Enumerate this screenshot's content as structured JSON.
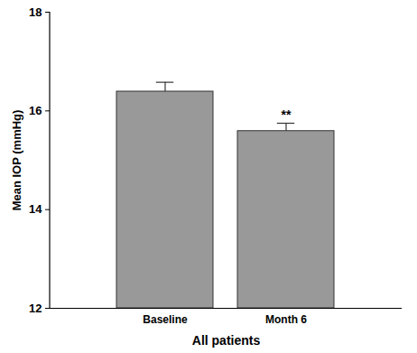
{
  "chart_data": {
    "type": "bar",
    "categories": [
      "Baseline",
      "Month 6"
    ],
    "values": [
      16.39,
      15.59
    ],
    "error": [
      0.19,
      0.16
    ],
    "color": "#999999",
    "xlabel": "All patients",
    "ylabel": "Mean IOP (mmHg)",
    "ylim": [
      12,
      18
    ],
    "yticks": [
      12,
      14,
      16,
      18
    ],
    "grid": false,
    "annotations": [
      {
        "category": "Month 6",
        "text": "**"
      }
    ]
  }
}
